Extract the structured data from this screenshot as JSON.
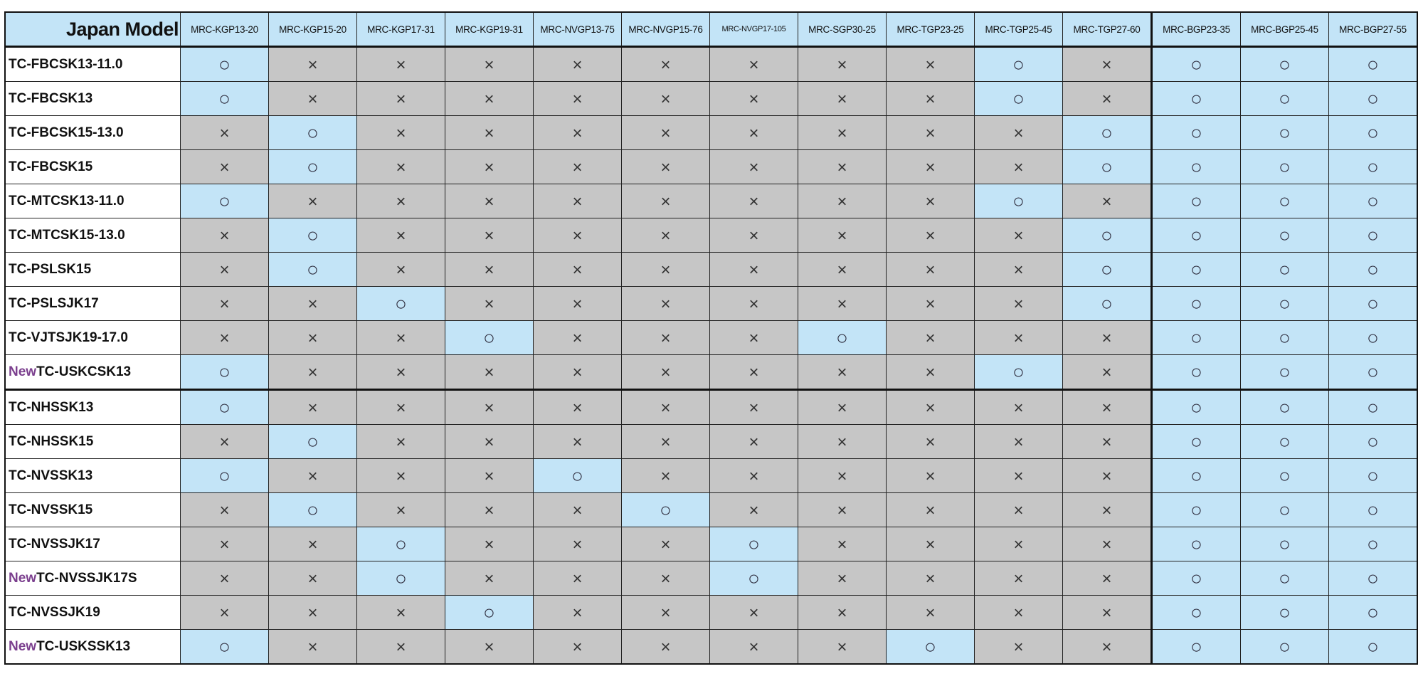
{
  "table": {
    "corner_label": "Japan Model",
    "columns": [
      "MRC-KGP13-20",
      "MRC-KGP15-20",
      "MRC-KGP17-31",
      "MRC-KGP19-31",
      "MRC-NVGP13-75",
      "MRC-NVGP15-76",
      "MRC-NVGP17-105",
      "MRC-SGP30-25",
      "MRC-TGP23-25",
      "MRC-TGP25-45",
      "MRC-TGP27-60",
      "MRC-BGP23-35",
      "MRC-BGP25-45",
      "MRC-BGP27-55"
    ],
    "symbols": {
      "compatible": "○",
      "incompatible": "×"
    },
    "colors": {
      "compatible_bg": "#c3e4f7",
      "incompatible_bg": "#c6c6c6",
      "new_text": "#7b3f8e",
      "header_bg": "#c3e4f7"
    },
    "rows": [
      {
        "prefix": "",
        "model": "TC-FBCSK13-11.0",
        "cells": [
          "○",
          "×",
          "×",
          "×",
          "×",
          "×",
          "×",
          "×",
          "×",
          "○",
          "×",
          "○",
          "○",
          "○"
        ]
      },
      {
        "prefix": "",
        "model": "TC-FBCSK13",
        "cells": [
          "○",
          "×",
          "×",
          "×",
          "×",
          "×",
          "×",
          "×",
          "×",
          "○",
          "×",
          "○",
          "○",
          "○"
        ]
      },
      {
        "prefix": "",
        "model": "TC-FBCSK15-13.0",
        "cells": [
          "×",
          "○",
          "×",
          "×",
          "×",
          "×",
          "×",
          "×",
          "×",
          "×",
          "○",
          "○",
          "○",
          "○"
        ]
      },
      {
        "prefix": "",
        "model": "TC-FBCSK15",
        "cells": [
          "×",
          "○",
          "×",
          "×",
          "×",
          "×",
          "×",
          "×",
          "×",
          "×",
          "○",
          "○",
          "○",
          "○"
        ]
      },
      {
        "prefix": "",
        "model": "TC-MTCSK13-11.0",
        "cells": [
          "○",
          "×",
          "×",
          "×",
          "×",
          "×",
          "×",
          "×",
          "×",
          "○",
          "×",
          "○",
          "○",
          "○"
        ]
      },
      {
        "prefix": "",
        "model": "TC-MTCSK15-13.0",
        "cells": [
          "×",
          "○",
          "×",
          "×",
          "×",
          "×",
          "×",
          "×",
          "×",
          "×",
          "○",
          "○",
          "○",
          "○"
        ]
      },
      {
        "prefix": "",
        "model": "TC-PSLSK15",
        "cells": [
          "×",
          "○",
          "×",
          "×",
          "×",
          "×",
          "×",
          "×",
          "×",
          "×",
          "○",
          "○",
          "○",
          "○"
        ]
      },
      {
        "prefix": "",
        "model": "TC-PSLSJK17",
        "cells": [
          "×",
          "×",
          "○",
          "×",
          "×",
          "×",
          "×",
          "×",
          "×",
          "×",
          "○",
          "○",
          "○",
          "○"
        ]
      },
      {
        "prefix": "",
        "model": "TC-VJTSJK19-17.0",
        "cells": [
          "×",
          "×",
          "×",
          "○",
          "×",
          "×",
          "×",
          "○",
          "×",
          "×",
          "×",
          "○",
          "○",
          "○"
        ]
      },
      {
        "prefix": "New",
        "model": "TC-USKCSK13",
        "cells": [
          "○",
          "×",
          "×",
          "×",
          "×",
          "×",
          "×",
          "×",
          "×",
          "○",
          "×",
          "○",
          "○",
          "○"
        ]
      },
      {
        "prefix": "",
        "model": "TC-NHSSK13",
        "cells": [
          "○",
          "×",
          "×",
          "×",
          "×",
          "×",
          "×",
          "×",
          "×",
          "×",
          "×",
          "○",
          "○",
          "○"
        ]
      },
      {
        "prefix": "",
        "model": "TC-NHSSK15",
        "cells": [
          "×",
          "○",
          "×",
          "×",
          "×",
          "×",
          "×",
          "×",
          "×",
          "×",
          "×",
          "○",
          "○",
          "○"
        ]
      },
      {
        "prefix": "",
        "model": "TC-NVSSK13",
        "cells": [
          "○",
          "×",
          "×",
          "×",
          "○",
          "×",
          "×",
          "×",
          "×",
          "×",
          "×",
          "○",
          "○",
          "○"
        ]
      },
      {
        "prefix": "",
        "model": "TC-NVSSK15",
        "cells": [
          "×",
          "○",
          "×",
          "×",
          "×",
          "○",
          "×",
          "×",
          "×",
          "×",
          "×",
          "○",
          "○",
          "○"
        ]
      },
      {
        "prefix": "",
        "model": "TC-NVSSJK17",
        "cells": [
          "×",
          "×",
          "○",
          "×",
          "×",
          "×",
          "○",
          "×",
          "×",
          "×",
          "×",
          "○",
          "○",
          "○"
        ]
      },
      {
        "prefix": "New",
        "model": "TC-NVSSJK17S",
        "cells": [
          "×",
          "×",
          "○",
          "×",
          "×",
          "×",
          "○",
          "×",
          "×",
          "×",
          "×",
          "○",
          "○",
          "○"
        ]
      },
      {
        "prefix": "",
        "model": "TC-NVSSJK19",
        "cells": [
          "×",
          "×",
          "×",
          "○",
          "×",
          "×",
          "×",
          "×",
          "×",
          "×",
          "×",
          "○",
          "○",
          "○"
        ]
      },
      {
        "prefix": "New",
        "model": "TC-USKSSK13",
        "cells": [
          "○",
          "×",
          "×",
          "×",
          "×",
          "×",
          "×",
          "×",
          "○",
          "×",
          "×",
          "○",
          "○",
          "○"
        ]
      }
    ]
  }
}
